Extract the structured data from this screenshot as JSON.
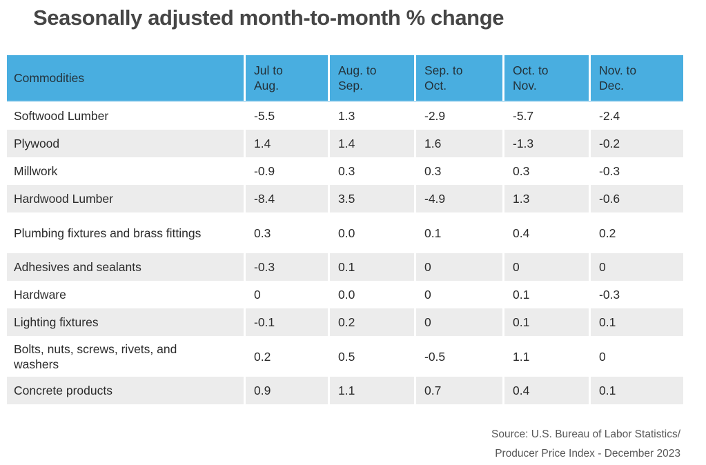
{
  "title": "Seasonally adjusted month-to-month % change",
  "colors": {
    "header_bg": "#49AEE0",
    "stripe_bg": "#ECECEC",
    "title_text": "#464646",
    "cell_text": "#2B2B2B",
    "source_text": "#585858"
  },
  "table": {
    "header": [
      {
        "line1": "Commodities",
        "line2": ""
      },
      {
        "line1": "Jul to",
        "line2": "Aug."
      },
      {
        "line1": "Aug. to",
        "line2": "Sep."
      },
      {
        "line1": "Sep. to",
        "line2": "Oct."
      },
      {
        "line1": "Oct. to",
        "line2": "Nov."
      },
      {
        "line1": "Nov. to",
        "line2": "Dec."
      }
    ],
    "rows": [
      {
        "label": "Softwood Lumber",
        "values": [
          "-5.5",
          "1.3",
          "-2.9",
          "-5.7",
          "-2.4"
        ]
      },
      {
        "label": "Plywood",
        "values": [
          "1.4",
          "1.4",
          "1.6",
          "-1.3",
          "-0.2"
        ]
      },
      {
        "label": "Millwork",
        "values": [
          "-0.9",
          "0.3",
          "0.3",
          "0.3",
          "-0.3"
        ]
      },
      {
        "label": "Hardwood Lumber",
        "values": [
          "-8.4",
          "3.5",
          "-4.9",
          "1.3",
          "-0.6"
        ]
      },
      {
        "label": "Plumbing fixtures and brass fittings",
        "values": [
          "0.3",
          "0.0",
          "0.1",
          "0.4",
          "0.2"
        ]
      },
      {
        "label": "Adhesives and sealants",
        "values": [
          "-0.3",
          "0.1",
          "0",
          "0",
          "0"
        ]
      },
      {
        "label": "Hardware",
        "values": [
          "0",
          "0.0",
          "0",
          "0.1",
          "-0.3"
        ]
      },
      {
        "label": "Lighting fixtures",
        "values": [
          "-0.1",
          "0.2",
          "0",
          "0.1",
          "0.1"
        ]
      },
      {
        "label": "Bolts, nuts, screws, rivets, and washers",
        "values": [
          "0.2",
          "0.5",
          "-0.5",
          "1.1",
          "0"
        ]
      },
      {
        "label": "Concrete products",
        "values": [
          "0.9",
          "1.1",
          "0.7",
          "0.4",
          "0.1"
        ]
      }
    ]
  },
  "source": {
    "line1": "Source: U.S. Bureau of Labor Statistics/",
    "line2": "Producer Price Index - December 2023"
  },
  "chart_data": {
    "type": "table",
    "title": "Seasonally adjusted month-to-month % change",
    "columns": [
      "Commodities",
      "Jul to Aug.",
      "Aug. to Sep.",
      "Sep. to Oct.",
      "Oct. to Nov.",
      "Nov. to Dec."
    ],
    "rows": [
      {
        "commodity": "Softwood Lumber",
        "values": [
          -5.5,
          1.3,
          -2.9,
          -5.7,
          -2.4
        ]
      },
      {
        "commodity": "Plywood",
        "values": [
          1.4,
          1.4,
          1.6,
          -1.3,
          -0.2
        ]
      },
      {
        "commodity": "Millwork",
        "values": [
          -0.9,
          0.3,
          0.3,
          0.3,
          -0.3
        ]
      },
      {
        "commodity": "Hardwood Lumber",
        "values": [
          -8.4,
          3.5,
          -4.9,
          1.3,
          -0.6
        ]
      },
      {
        "commodity": "Plumbing fixtures and brass fittings",
        "values": [
          0.3,
          0.0,
          0.1,
          0.4,
          0.2
        ]
      },
      {
        "commodity": "Adhesives and sealants",
        "values": [
          -0.3,
          0.1,
          0,
          0,
          0
        ]
      },
      {
        "commodity": "Hardware",
        "values": [
          0,
          0.0,
          0,
          0.1,
          -0.3
        ]
      },
      {
        "commodity": "Lighting fixtures",
        "values": [
          -0.1,
          0.2,
          0,
          0.1,
          0.1
        ]
      },
      {
        "commodity": "Bolts, nuts, screws, rivets, and washers",
        "values": [
          0.2,
          0.5,
          -0.5,
          1.1,
          0
        ]
      },
      {
        "commodity": "Concrete products",
        "values": [
          0.9,
          1.1,
          0.7,
          0.4,
          0.1
        ]
      }
    ],
    "source": "Source: U.S. Bureau of Labor Statistics/ Producer Price Index - December 2023",
    "unit": "% change, seasonally adjusted, month-to-month"
  }
}
